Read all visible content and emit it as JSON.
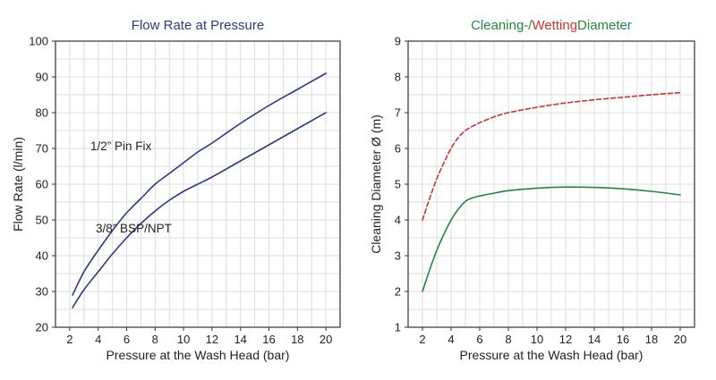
{
  "chart_data": [
    {
      "type": "line",
      "title": "Flow Rate at Pressure",
      "title_color": "#2b3a86",
      "xlabel": "Pressure at the Wash Head (bar)",
      "ylabel": "Flow Rate (l/min)",
      "xlim": [
        1,
        21
      ],
      "ylim": [
        20,
        100
      ],
      "xticks": [
        2,
        4,
        6,
        8,
        10,
        12,
        14,
        16,
        18,
        20
      ],
      "yticks": [
        20,
        30,
        40,
        50,
        60,
        70,
        80,
        90,
        100
      ],
      "grid": true,
      "series": [
        {
          "name": "1/2” Pin Fix",
          "color": "#2b3a86",
          "dash": "",
          "x": [
            2.2,
            3,
            4,
            5,
            6,
            7,
            8,
            9,
            10,
            11,
            12,
            14,
            16,
            18,
            20
          ],
          "y": [
            29,
            35.5,
            41.5,
            47,
            52,
            56,
            60,
            63,
            66,
            69,
            71.5,
            77,
            82,
            86.5,
            91
          ]
        },
        {
          "name": "3/8” BSP/NPT",
          "color": "#2b3a86",
          "dash": "",
          "x": [
            2.2,
            3,
            4,
            5,
            6,
            7,
            8,
            9,
            10,
            11,
            12,
            14,
            16,
            18,
            20
          ],
          "y": [
            25.5,
            30.5,
            35.5,
            40.5,
            45,
            49,
            52.5,
            55.5,
            58,
            60,
            62,
            66.5,
            71,
            75.5,
            80
          ]
        }
      ],
      "annotations": [
        {
          "text": "1/2” Pin Fix",
          "x": 5.6,
          "y": 69.5
        },
        {
          "text": "3/8” BSP/NPT",
          "x": 6.5,
          "y": 46.5
        }
      ]
    },
    {
      "type": "line",
      "title_parts": [
        {
          "text": "Cleaning-/",
          "color": "#1e8a3a"
        },
        {
          "text": "Wetting",
          "color": "#d32f2f"
        },
        {
          "text": "Diameter",
          "color": "#1e8a3a"
        }
      ],
      "xlabel": "Pressure at the Wash Head (bar)",
      "ylabel": "Cleaning Diameter Ø (m)",
      "xlim": [
        1,
        21
      ],
      "ylim": [
        1,
        9
      ],
      "xticks": [
        2,
        4,
        6,
        8,
        10,
        12,
        14,
        16,
        18,
        20
      ],
      "yticks": [
        1,
        2,
        3,
        4,
        5,
        6,
        7,
        8,
        9
      ],
      "grid": true,
      "series": [
        {
          "name": "Wetting",
          "color": "#d32f2f",
          "dash": "5,3",
          "x": [
            2,
            2.5,
            3,
            3.5,
            4,
            4.5,
            5,
            5.5,
            6,
            7,
            8,
            10,
            12,
            14,
            16,
            18,
            20
          ],
          "y": [
            4.0,
            4.6,
            5.15,
            5.6,
            6.0,
            6.3,
            6.5,
            6.62,
            6.72,
            6.88,
            7.0,
            7.15,
            7.27,
            7.36,
            7.43,
            7.5,
            7.56
          ]
        },
        {
          "name": "Cleaning",
          "color": "#1e8a3a",
          "dash": "",
          "x": [
            2,
            2.5,
            3,
            3.5,
            4,
            4.5,
            5,
            5.5,
            6,
            7,
            8,
            10,
            12,
            14,
            16,
            18,
            20
          ],
          "y": [
            2.0,
            2.6,
            3.15,
            3.6,
            4.0,
            4.3,
            4.52,
            4.62,
            4.67,
            4.75,
            4.82,
            4.89,
            4.92,
            4.91,
            4.87,
            4.8,
            4.7
          ]
        }
      ]
    }
  ]
}
